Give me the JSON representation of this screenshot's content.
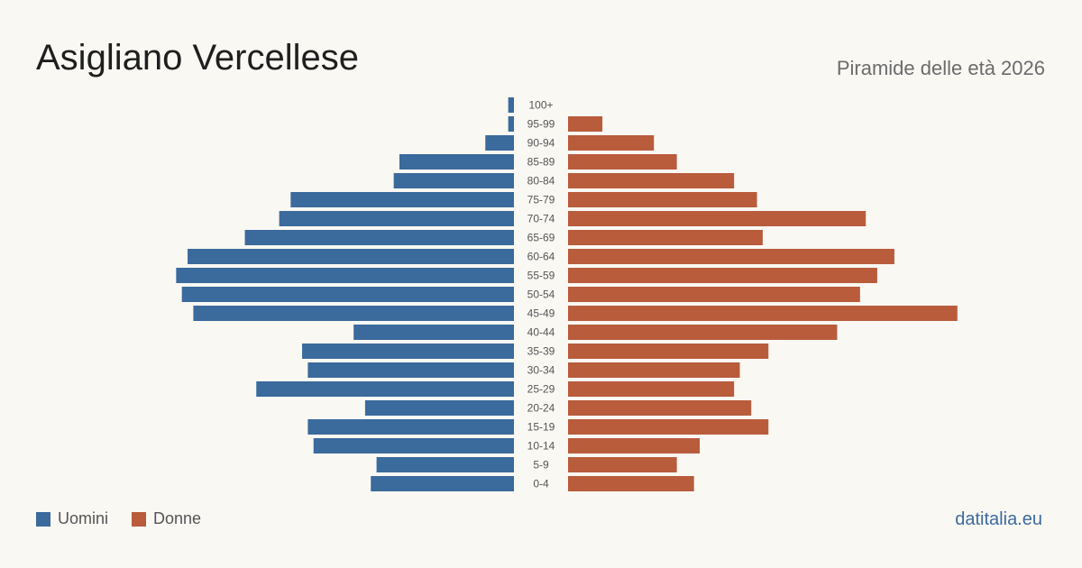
{
  "header": {
    "title": "Asigliano Vercellese",
    "subtitle": "Piramide delle età 2026"
  },
  "legend": {
    "men_label": "Uomini",
    "women_label": "Donne"
  },
  "brand": "datitalia.eu",
  "colors": {
    "men": "#3b6a9c",
    "women": "#b85c3c",
    "background": "#faf8f3"
  },
  "chart_data": {
    "type": "bar",
    "orientation": "horizontal-pyramid",
    "categories": [
      "100+",
      "95-99",
      "90-94",
      "85-89",
      "80-84",
      "75-79",
      "70-74",
      "65-69",
      "60-64",
      "55-59",
      "50-54",
      "45-49",
      "40-44",
      "35-39",
      "30-34",
      "25-29",
      "20-24",
      "15-19",
      "10-14",
      "5-9",
      "0-4"
    ],
    "series": [
      {
        "name": "Uomini",
        "values": [
          1,
          1,
          5,
          20,
          21,
          39,
          41,
          47,
          57,
          59,
          58,
          56,
          28,
          37,
          36,
          45,
          26,
          36,
          35,
          24,
          25
        ]
      },
      {
        "name": "Donne",
        "values": [
          0,
          6,
          15,
          19,
          29,
          33,
          52,
          34,
          57,
          54,
          51,
          68,
          47,
          35,
          30,
          29,
          32,
          35,
          23,
          19,
          22
        ]
      }
    ],
    "legend_position": "bottom-left",
    "grid": false
  }
}
